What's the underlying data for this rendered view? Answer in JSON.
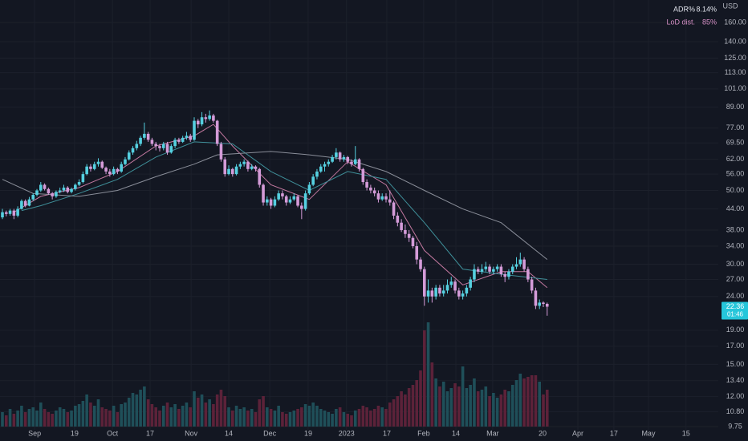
{
  "chart_data": {
    "type": "candlestick",
    "currency": "USD",
    "indicators": [
      {
        "name": "ADR%",
        "value": 8.14,
        "value_label": "8.14%",
        "color": "#e0e3eb"
      },
      {
        "name": "LoD dist.",
        "value": 85,
        "value_label": "85%",
        "color": "#d48fc4"
      }
    ],
    "last_price": {
      "value": 22.36,
      "label": "22.36",
      "countdown": "01:46",
      "color": "#26c6da"
    },
    "log_scale": true,
    "grid": true,
    "up_color": "#55d0e0",
    "down_color": "#d49bd8",
    "volume_up_color": "#1f4f59",
    "volume_down_color": "#5c2239",
    "ylim": [
      9.75,
      160
    ],
    "yticks": [
      {
        "value": 160,
        "label": "160.00"
      },
      {
        "value": 140,
        "label": "140.00"
      },
      {
        "value": 125,
        "label": "125.00"
      },
      {
        "value": 113,
        "label": "113.00"
      },
      {
        "value": 101,
        "label": "101.00"
      },
      {
        "value": 89,
        "label": "89.00"
      },
      {
        "value": 77,
        "label": "77.00"
      },
      {
        "value": 69.5,
        "label": "69.50"
      },
      {
        "value": 62,
        "label": "62.00"
      },
      {
        "value": 56,
        "label": "56.00"
      },
      {
        "value": 50,
        "label": "50.00"
      },
      {
        "value": 44,
        "label": "44.00"
      },
      {
        "value": 38,
        "label": "38.00"
      },
      {
        "value": 34,
        "label": "34.00"
      },
      {
        "value": 30,
        "label": "30.00"
      },
      {
        "value": 27,
        "label": "27.00"
      },
      {
        "value": 24,
        "label": "24.00"
      },
      {
        "value": 19,
        "label": "19.00"
      },
      {
        "value": 17,
        "label": "17.00"
      },
      {
        "value": 15,
        "label": "15.00"
      },
      {
        "value": 13.4,
        "label": "13.40"
      },
      {
        "value": 12,
        "label": "12.00"
      },
      {
        "value": 10.8,
        "label": "10.80"
      },
      {
        "value": 9.75,
        "label": "9.75"
      }
    ],
    "time_labels": [
      {
        "label": "Sep",
        "index": 8.4
      },
      {
        "label": "19",
        "index": 18.8
      },
      {
        "label": "Oct",
        "index": 28.7
      },
      {
        "label": "17",
        "index": 38.5
      },
      {
        "label": "Nov",
        "index": 49.2
      },
      {
        "label": "14",
        "index": 59
      },
      {
        "label": "Dec",
        "index": 69.7
      },
      {
        "label": "19",
        "index": 79.7
      },
      {
        "label": "2023",
        "index": 89.7
      },
      {
        "label": "17",
        "index": 100.2
      },
      {
        "label": "Feb",
        "index": 109.8
      },
      {
        "label": "14",
        "index": 118.2
      },
      {
        "label": "Mar",
        "index": 127.8
      },
      {
        "label": "20",
        "index": 140.8
      },
      {
        "label": "Apr",
        "index": 150
      },
      {
        "label": "17",
        "index": 159.4
      },
      {
        "label": "May",
        "index": 168.4
      },
      {
        "label": "15",
        "index": 178.2
      }
    ],
    "candles": [
      [
        41.5,
        44,
        41,
        43
      ],
      [
        43,
        43.5,
        41.8,
        42.5
      ],
      [
        42.5,
        44,
        42,
        43.5
      ],
      [
        43.5,
        44,
        41,
        42
      ],
      [
        42,
        44.8,
        41.5,
        44
      ],
      [
        44,
        47,
        43.8,
        46.5
      ],
      [
        46.5,
        47,
        44.5,
        45
      ],
      [
        45,
        47.8,
        44.8,
        47
      ],
      [
        47,
        49,
        46.5,
        48.5
      ],
      [
        48.5,
        50.5,
        48,
        50
      ],
      [
        50,
        53,
        49.5,
        52
      ],
      [
        52,
        52.5,
        50,
        50.5
      ],
      [
        50.5,
        51,
        48.5,
        49
      ],
      [
        49,
        49.5,
        47,
        48
      ],
      [
        48,
        50,
        47.5,
        49.5
      ],
      [
        49.5,
        51,
        49,
        50
      ],
      [
        50,
        52,
        49.5,
        51
      ],
      [
        51,
        51.5,
        49,
        49.5
      ],
      [
        49.5,
        51,
        49,
        50.5
      ],
      [
        50.5,
        52.5,
        50,
        52
      ],
      [
        52,
        54,
        51.5,
        53
      ],
      [
        53,
        57,
        52.5,
        56
      ],
      [
        56,
        60,
        55.5,
        59
      ],
      [
        59,
        60,
        57,
        58
      ],
      [
        58,
        61,
        57.5,
        60
      ],
      [
        60,
        62.5,
        59,
        61
      ],
      [
        61,
        61.5,
        58,
        58.5
      ],
      [
        58.5,
        59,
        56,
        57
      ],
      [
        57,
        58,
        55,
        56
      ],
      [
        56,
        59,
        55.5,
        58
      ],
      [
        58,
        58.5,
        56,
        57
      ],
      [
        57,
        61,
        56.5,
        60
      ],
      [
        60,
        63,
        59.5,
        62
      ],
      [
        62,
        66,
        61.5,
        65
      ],
      [
        65,
        68,
        64,
        67
      ],
      [
        67,
        70.5,
        66,
        69
      ],
      [
        69,
        73,
        68,
        72
      ],
      [
        72,
        80,
        71,
        74
      ],
      [
        74,
        75,
        70,
        71
      ],
      [
        71,
        72,
        68,
        69
      ],
      [
        69,
        70,
        66,
        68
      ],
      [
        68,
        69,
        65.5,
        67
      ],
      [
        67,
        70,
        66,
        69
      ],
      [
        69,
        70,
        64,
        65
      ],
      [
        65,
        69,
        64.5,
        68
      ],
      [
        68,
        72,
        67,
        71
      ],
      [
        71,
        72,
        69,
        70
      ],
      [
        70,
        73,
        69.5,
        72
      ],
      [
        72,
        75,
        71,
        73
      ],
      [
        73,
        74,
        70,
        71
      ],
      [
        71,
        83,
        70.5,
        81
      ],
      [
        81,
        82,
        77,
        79
      ],
      [
        79,
        86,
        78,
        83
      ],
      [
        83,
        85,
        80,
        82
      ],
      [
        82,
        87,
        81,
        84
      ],
      [
        84,
        85,
        80,
        81
      ],
      [
        81,
        81.5,
        68,
        69
      ],
      [
        69,
        70,
        61,
        62
      ],
      [
        62,
        63,
        55,
        56
      ],
      [
        56,
        59.5,
        55.5,
        58
      ],
      [
        58,
        58.5,
        55,
        56
      ],
      [
        56,
        60,
        55.5,
        59
      ],
      [
        59,
        61,
        58,
        60
      ],
      [
        60,
        62,
        59,
        61
      ],
      [
        61,
        61.5,
        57,
        58
      ],
      [
        58,
        60,
        57.5,
        59
      ],
      [
        59,
        59.5,
        57,
        58
      ],
      [
        58,
        58.5,
        51,
        52
      ],
      [
        52,
        52.5,
        45,
        46
      ],
      [
        46,
        48,
        45,
        47
      ],
      [
        47,
        47.5,
        44,
        45
      ],
      [
        45,
        48,
        44.5,
        47
      ],
      [
        47,
        50,
        46.5,
        49
      ],
      [
        49,
        50,
        47,
        48
      ],
      [
        48,
        48.5,
        45,
        46
      ],
      [
        46,
        48,
        45.5,
        47
      ],
      [
        47,
        49,
        46.5,
        48
      ],
      [
        48,
        48.5,
        44.5,
        45
      ],
      [
        45,
        46,
        41,
        44
      ],
      [
        44,
        50,
        43.5,
        49
      ],
      [
        49,
        53,
        48.5,
        52
      ],
      [
        52,
        56,
        51.5,
        55
      ],
      [
        55,
        58,
        54,
        57
      ],
      [
        57,
        60,
        56.5,
        59
      ],
      [
        59,
        61,
        57,
        60
      ],
      [
        60,
        62,
        59,
        61
      ],
      [
        61,
        64,
        60.5,
        63
      ],
      [
        63,
        67,
        62,
        65
      ],
      [
        65,
        65.5,
        61,
        62
      ],
      [
        62,
        64,
        61,
        63
      ],
      [
        63,
        63.5,
        60,
        61
      ],
      [
        61,
        62,
        59,
        60
      ],
      [
        60,
        68,
        59.5,
        62
      ],
      [
        62,
        62.5,
        57,
        58
      ],
      [
        58,
        58.5,
        52,
        53
      ],
      [
        53,
        54,
        50,
        51
      ],
      [
        51,
        52,
        49,
        50
      ],
      [
        50,
        51,
        48,
        49
      ],
      [
        49,
        50,
        46,
        47
      ],
      [
        47,
        49,
        46.5,
        48
      ],
      [
        48,
        49,
        46,
        47
      ],
      [
        47,
        50,
        45,
        46
      ],
      [
        46,
        46.5,
        41,
        42
      ],
      [
        42,
        43,
        39,
        40
      ],
      [
        40,
        41,
        37.5,
        38
      ],
      [
        38,
        39.5,
        36,
        37
      ],
      [
        37,
        38,
        35,
        36
      ],
      [
        36,
        36.5,
        33.5,
        34
      ],
      [
        34,
        35,
        30,
        31
      ],
      [
        31,
        31.5,
        28.5,
        29
      ],
      [
        29,
        29.5,
        22.5,
        24
      ],
      [
        24,
        27,
        23,
        25
      ],
      [
        25,
        25.5,
        23,
        24
      ],
      [
        24,
        26,
        23.5,
        25.5
      ],
      [
        25.5,
        26,
        24,
        24.5
      ],
      [
        24.5,
        26,
        24,
        25
      ],
      [
        25,
        27,
        24.5,
        26
      ],
      [
        26,
        27.5,
        25.5,
        26.6
      ],
      [
        26.6,
        27,
        24.5,
        25
      ],
      [
        25,
        25.5,
        23.5,
        24
      ],
      [
        24,
        25,
        23.5,
        24.5
      ],
      [
        24.5,
        26,
        24,
        25.5
      ],
      [
        25.5,
        27.5,
        25,
        27
      ],
      [
        27,
        30,
        26.5,
        29
      ],
      [
        29,
        29.5,
        28,
        28.5
      ],
      [
        28.5,
        30,
        28,
        29
      ],
      [
        29,
        30.5,
        28.5,
        29.5
      ],
      [
        29.5,
        30,
        28,
        28.5
      ],
      [
        28.5,
        29.5,
        28,
        29
      ],
      [
        29,
        30,
        28.5,
        29.5
      ],
      [
        29.5,
        30,
        27.5,
        28
      ],
      [
        28,
        28.5,
        26.5,
        27.5
      ],
      [
        27.5,
        29,
        27,
        28.5
      ],
      [
        28.5,
        30,
        28,
        29.5
      ],
      [
        29.5,
        31.5,
        29,
        30
      ],
      [
        30,
        32.5,
        29.5,
        31
      ],
      [
        31,
        31.5,
        28.5,
        29
      ],
      [
        29,
        29.5,
        26.5,
        27
      ],
      [
        27,
        27.5,
        24.5,
        25
      ],
      [
        25,
        25.5,
        22,
        22.5
      ],
      [
        22.5,
        23.5,
        22,
        23
      ],
      [
        23,
        23.2,
        22.3,
        22.8
      ],
      [
        22.8,
        23,
        21,
        22.36
      ]
    ],
    "volume": [
      18,
      14,
      22,
      16,
      20,
      26,
      18,
      22,
      24,
      20,
      30,
      22,
      18,
      16,
      20,
      24,
      22,
      18,
      20,
      26,
      28,
      32,
      40,
      30,
      26,
      34,
      24,
      22,
      20,
      26,
      18,
      28,
      30,
      36,
      42,
      40,
      46,
      50,
      34,
      28,
      24,
      20,
      26,
      30,
      24,
      28,
      22,
      26,
      30,
      24,
      44,
      36,
      40,
      30,
      34,
      28,
      40,
      46,
      38,
      24,
      20,
      26,
      22,
      24,
      20,
      22,
      18,
      34,
      38,
      24,
      22,
      20,
      26,
      18,
      16,
      18,
      20,
      22,
      24,
      28,
      26,
      30,
      26,
      22,
      20,
      18,
      16,
      22,
      24,
      18,
      16,
      14,
      20,
      22,
      26,
      24,
      20,
      22,
      26,
      24,
      22,
      30,
      34,
      38,
      44,
      40,
      48,
      52,
      58,
      70,
      120,
      130,
      80,
      60,
      50,
      56,
      44,
      48,
      54,
      50,
      75,
      48,
      52,
      60,
      44,
      46,
      50,
      38,
      42,
      36,
      40,
      46,
      44,
      52,
      58,
      66,
      60,
      62,
      64,
      64,
      56,
      40,
      46
    ],
    "moving_averages": [
      {
        "color": "#c2789f",
        "x": [
          3,
          10,
          20,
          30,
          40,
          50,
          55,
          60,
          70,
          80,
          90,
          100,
          110,
          120,
          130,
          137,
          142
        ],
        "values": [
          43,
          48,
          51,
          57,
          68,
          73,
          79,
          68,
          52,
          47,
          61,
          52,
          33,
          26,
          28.5,
          28.5,
          25.5
        ]
      },
      {
        "color": "#3f8f99",
        "x": [
          5,
          10,
          20,
          30,
          40,
          50,
          60,
          70,
          80,
          90,
          100,
          110,
          120,
          130,
          142
        ],
        "values": [
          43.5,
          45,
          49,
          54,
          63,
          70,
          69,
          57,
          50,
          57,
          54,
          40,
          29,
          28,
          27
        ]
      },
      {
        "color": "#8a8e99",
        "x": [
          0,
          8,
          20,
          30,
          40,
          50,
          56,
          70,
          80,
          90,
          100,
          110,
          120,
          130,
          142
        ],
        "values": [
          54,
          49,
          48,
          50,
          55,
          60,
          64,
          65.5,
          64,
          62,
          57,
          50,
          44,
          40,
          31
        ]
      }
    ]
  }
}
